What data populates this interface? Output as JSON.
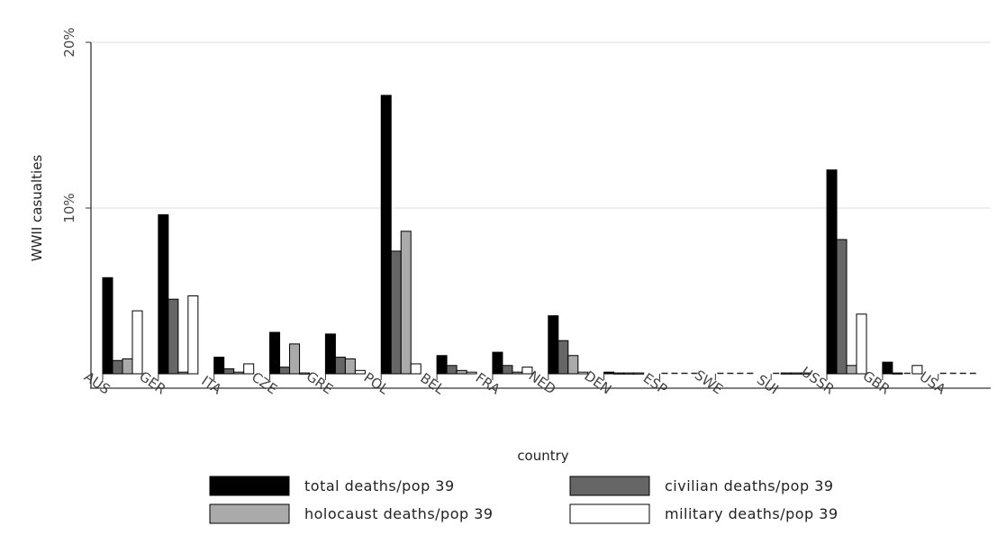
{
  "chart_data": {
    "type": "bar",
    "xlabel": "country",
    "ylabel": "WWII casualties",
    "ylim": [
      0,
      20
    ],
    "yticks": [
      {
        "value": 10,
        "label": "10%"
      },
      {
        "value": 20,
        "label": "20%"
      }
    ],
    "grid": true,
    "legend_position": "bottom",
    "categories": [
      "AUS",
      "GER",
      "ITA",
      "CZE",
      "GRE",
      "POL",
      "BEL",
      "FRA",
      "NED",
      "DEN",
      "ESP",
      "SWE",
      "SUI",
      "USSR",
      "GBR",
      "USA"
    ],
    "series": [
      {
        "name": "total deaths/pop 39",
        "color": "#000000",
        "values": [
          5.8,
          9.6,
          1.0,
          2.5,
          2.4,
          16.8,
          1.1,
          1.3,
          3.5,
          0.1,
          0,
          0,
          0,
          12.3,
          0.7,
          0
        ]
      },
      {
        "name": "civilian deaths/pop 39",
        "color": "#666666",
        "values": [
          0.8,
          4.5,
          0.3,
          0.4,
          1.0,
          7.4,
          0.5,
          0.5,
          2.0,
          0.05,
          0,
          0,
          0.05,
          8.1,
          0.05,
          0
        ]
      },
      {
        "name": "holocaust deaths/pop 39",
        "color": "#aaaaaa",
        "values": [
          0.9,
          0.1,
          0.1,
          1.8,
          0.9,
          8.6,
          0.2,
          0.1,
          1.1,
          0.05,
          0,
          0,
          0.05,
          0.5,
          0,
          0
        ]
      },
      {
        "name": "military deaths/pop 39",
        "color": "#ffffff",
        "values": [
          3.8,
          4.7,
          0.6,
          0.05,
          0.2,
          0.6,
          0.1,
          0.4,
          0.1,
          0.05,
          0,
          0,
          0.05,
          3.6,
          0.5,
          0
        ]
      }
    ]
  }
}
